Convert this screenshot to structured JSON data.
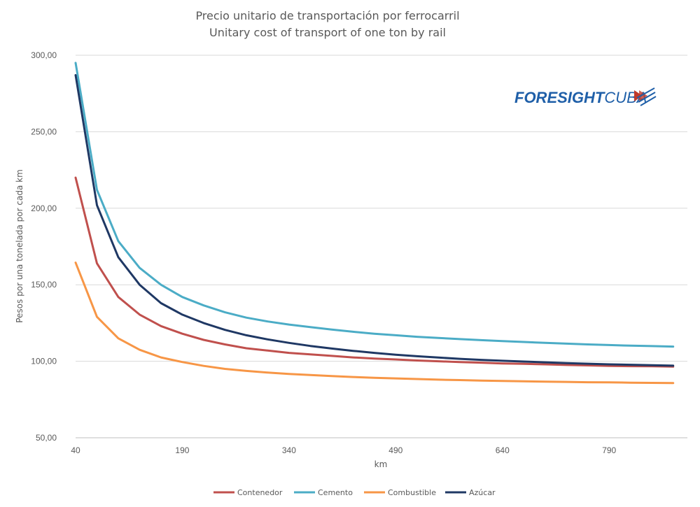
{
  "chart_data": {
    "type": "line",
    "title": "Precio unitario de transportación por ferrocarril",
    "subtitle": "Unitary cost of transport of one ton by rail",
    "xlabel": "km",
    "ylabel": "Pesos por una tonelada por cada km",
    "xlim": [
      40,
      900
    ],
    "ylim": [
      50,
      300
    ],
    "x_ticks": [
      "40",
      "190",
      "340",
      "490",
      "640",
      "790"
    ],
    "y_ticks": [
      "300,00",
      "250,00",
      "200,00",
      "150,00",
      "100,00",
      "50,00"
    ],
    "x": [
      40,
      70,
      100,
      130,
      160,
      190,
      220,
      250,
      280,
      310,
      340,
      370,
      400,
      430,
      460,
      490,
      520,
      550,
      580,
      610,
      640,
      670,
      700,
      730,
      760,
      790,
      820,
      850,
      880,
      910
    ],
    "series": [
      {
        "name": "Contenedor",
        "color": "#c0504d",
        "values": [
          220,
          164,
          142,
          130.5,
          123,
          118,
          114,
          111,
          108.5,
          107,
          105.5,
          104.5,
          103.5,
          102.5,
          101.8,
          101.2,
          100.5,
          100,
          99.5,
          99.1,
          98.6,
          98.3,
          98,
          97.6,
          97.3,
          97,
          96.8,
          96.7,
          96.5,
          96.3
        ]
      },
      {
        "name": "Cemento",
        "color": "#4bacc6",
        "values": [
          295,
          212,
          178.5,
          161,
          150,
          142,
          136.5,
          132,
          128.5,
          126,
          124,
          122.3,
          120.7,
          119.3,
          118,
          117,
          116,
          115.2,
          114.5,
          113.8,
          113.2,
          112.6,
          112,
          111.5,
          111,
          110.6,
          110.2,
          109.9,
          109.6,
          109.3
        ]
      },
      {
        "name": "Combustible",
        "color": "#f79646",
        "values": [
          164.5,
          129,
          115,
          107.5,
          102.5,
          99.5,
          97,
          95,
          93.7,
          92.6,
          91.7,
          91,
          90.3,
          89.7,
          89.2,
          88.8,
          88.4,
          88,
          87.7,
          87.4,
          87.1,
          86.9,
          86.7,
          86.5,
          86.3,
          86.2,
          86,
          85.9,
          85.8,
          85.6
        ]
      },
      {
        "name": "Azúcar",
        "color": "#1f3864",
        "values": [
          287,
          202,
          168,
          150,
          138,
          130.5,
          125,
          120.5,
          117,
          114.3,
          112,
          110,
          108.3,
          106.8,
          105.5,
          104.3,
          103.3,
          102.4,
          101.6,
          100.9,
          100.3,
          99.8,
          99.3,
          98.8,
          98.4,
          98,
          97.7,
          97.4,
          97.1,
          96.8
        ]
      }
    ],
    "grid": true,
    "legend_position": "bottom"
  },
  "logo": {
    "part1": "FORESIGHT",
    "part2": "CUBA"
  }
}
